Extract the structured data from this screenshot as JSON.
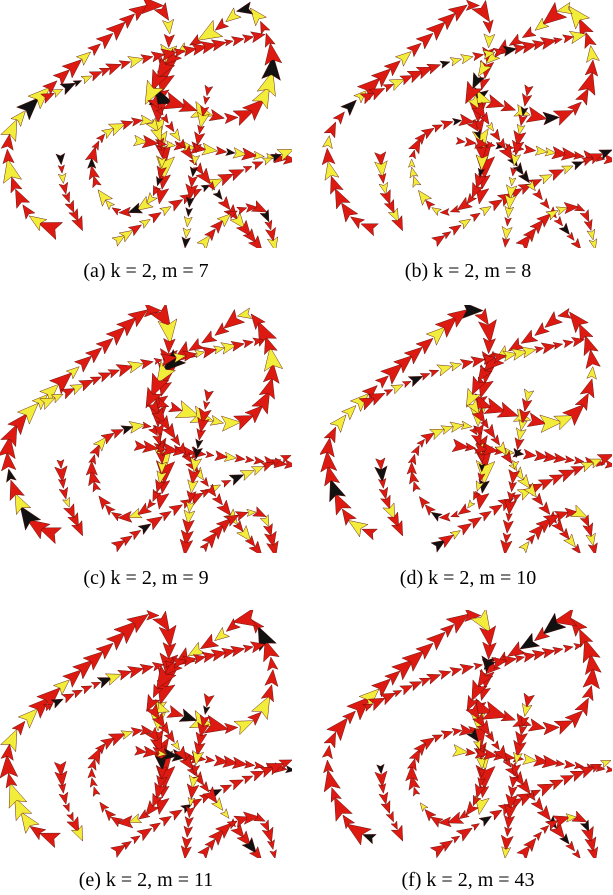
{
  "subfigures": [
    {
      "caption": "(a) k = 2, m = 7"
    },
    {
      "caption": "(b) k = 2, m = 8"
    },
    {
      "caption": "(c) k = 2, m = 9"
    },
    {
      "caption": "(d) k = 2, m = 10"
    },
    {
      "caption": "(e) k = 2, m = 11"
    },
    {
      "caption": "(f) k = 2, m = 43"
    }
  ]
}
